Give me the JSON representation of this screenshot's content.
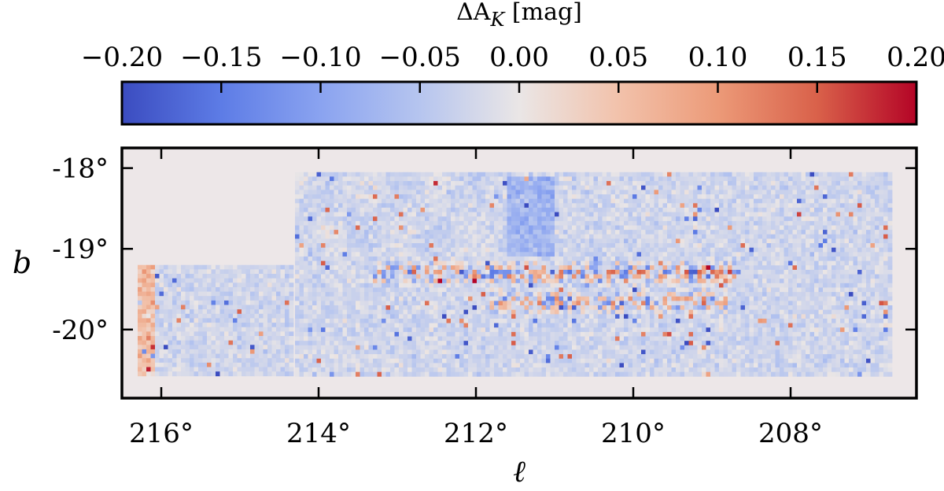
{
  "chart_data": {
    "type": "heatmap",
    "title": "",
    "xlabel": "ℓ",
    "ylabel": "b",
    "xlim": [
      216.5,
      206.4
    ],
    "ylim": [
      -20.85,
      -17.75
    ],
    "xticks": [
      216,
      214,
      212,
      210,
      208
    ],
    "xtick_labels": [
      "216°",
      "214°",
      "212°",
      "210°",
      "208°"
    ],
    "yticks": [
      -18,
      -19,
      -20
    ],
    "ytick_labels": [
      "-18°",
      "-19°",
      "-20°"
    ],
    "colorbar": {
      "label_prefix": "ΔA",
      "label_sub": "K",
      "label_suffix": " [mag]",
      "range": [
        -0.2,
        0.2
      ],
      "ticks": [
        -0.2,
        -0.15,
        -0.1,
        -0.05,
        0.0,
        0.05,
        0.1,
        0.15,
        0.2
      ],
      "tick_labels": [
        "−0.20",
        "−0.15",
        "−0.10",
        "−0.05",
        "0.00",
        "0.05",
        "0.10",
        "0.15",
        "0.20"
      ],
      "colormap": "coolwarm",
      "position": "top"
    },
    "background_color": "#ede7e8",
    "footprint": [
      {
        "l_range": [
          214.3,
          206.7
        ],
        "b_range": [
          -20.6,
          -18.05
        ]
      },
      {
        "l_range": [
          216.3,
          214.3
        ],
        "b_range": [
          -20.6,
          -19.2
        ]
      }
    ],
    "cell_size_deg": 0.055,
    "features": [
      {
        "description": "positive residual ridge",
        "l_range": [
          213.3,
          208.7
        ],
        "b_center": -19.3,
        "amplitude": 0.14
      },
      {
        "description": "positive residual ridge",
        "l_range": [
          211.8,
          208.8
        ],
        "b_center": -19.65,
        "amplitude": 0.13
      },
      {
        "description": "negative residual column",
        "l_range": [
          211.6,
          211.0
        ],
        "b_range": [
          -19.1,
          -18.1
        ],
        "amplitude": -0.06
      },
      {
        "description": "mixed residuals at edges",
        "l_range": [
          216.3,
          216.1
        ],
        "b_range": [
          -20.6,
          -19.2
        ],
        "amplitude": 0.1
      }
    ]
  }
}
